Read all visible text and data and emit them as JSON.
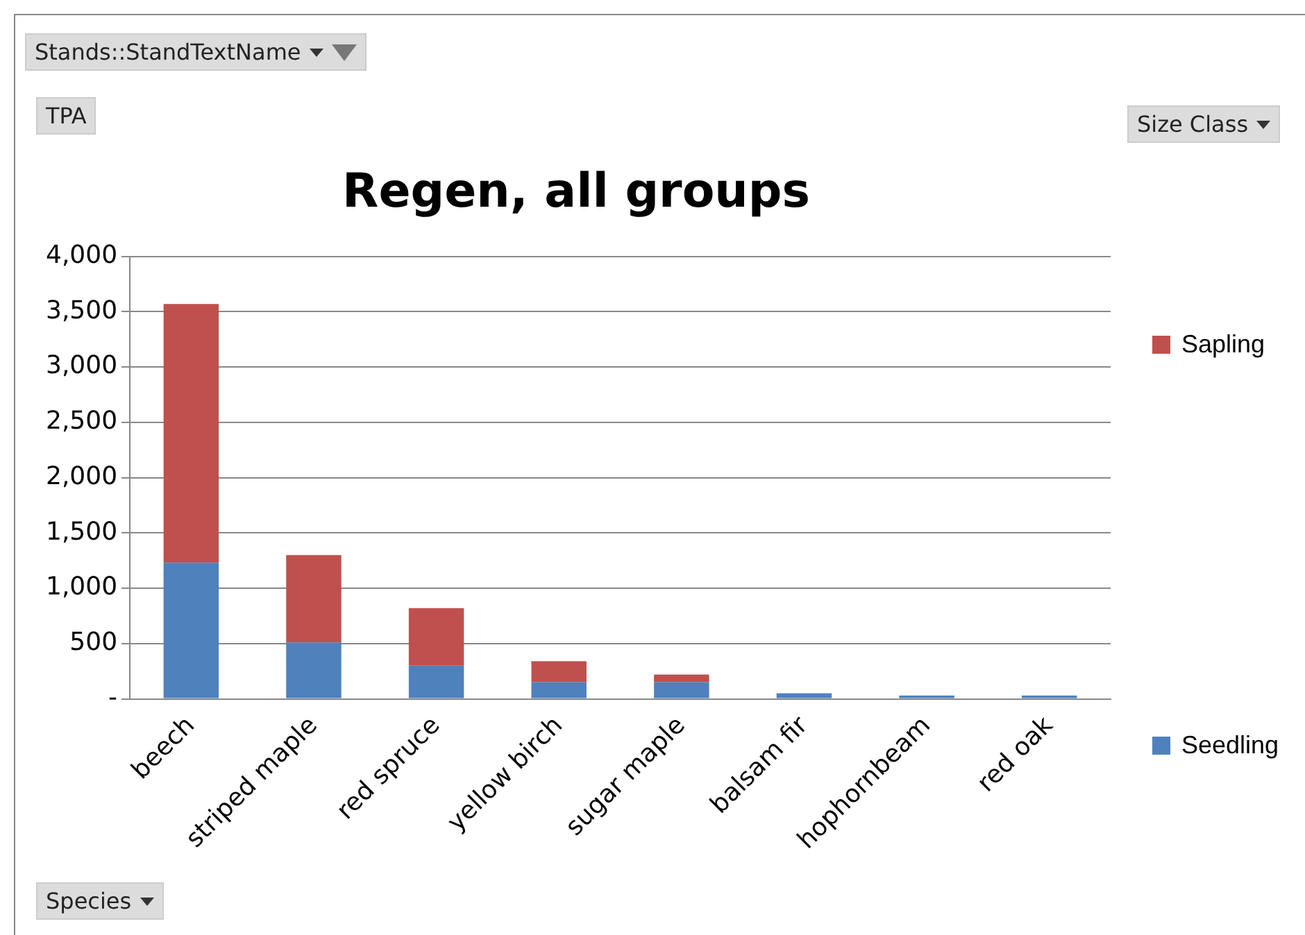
{
  "chart_data": {
    "type": "bar",
    "title": "Regen, all groups",
    "xlabel": "Species",
    "legend_title": "Size Class",
    "annotations": [
      "Stands::StandTextName",
      "TPA"
    ],
    "categories": [
      "beech",
      "striped maple",
      "red spruce",
      "yellow birch",
      "sugar maple",
      "balsam fir",
      "hophornbeam",
      "red oak"
    ],
    "series": [
      {
        "name": "Seedling",
        "color": "#4f81bd",
        "values": [
          1230,
          510,
          300,
          150,
          150,
          50,
          30,
          30
        ]
      },
      {
        "name": "Sapling",
        "color": "#c0504d",
        "values": [
          2340,
          790,
          520,
          190,
          70,
          0,
          0,
          0
        ]
      }
    ],
    "stacked": true,
    "ylim": [
      0,
      4000
    ],
    "yticks": [
      {
        "value": 0,
        "label": "-"
      },
      {
        "value": 500,
        "label": "500"
      },
      {
        "value": 1000,
        "label": "1,000"
      },
      {
        "value": 1500,
        "label": "1,500"
      },
      {
        "value": 2000,
        "label": "2,000"
      },
      {
        "value": 2500,
        "label": "2,500"
      },
      {
        "value": 3000,
        "label": "3,000"
      },
      {
        "value": 3500,
        "label": "3,500"
      },
      {
        "value": 4000,
        "label": "4,000"
      }
    ],
    "grid": "y",
    "legend": "right"
  }
}
